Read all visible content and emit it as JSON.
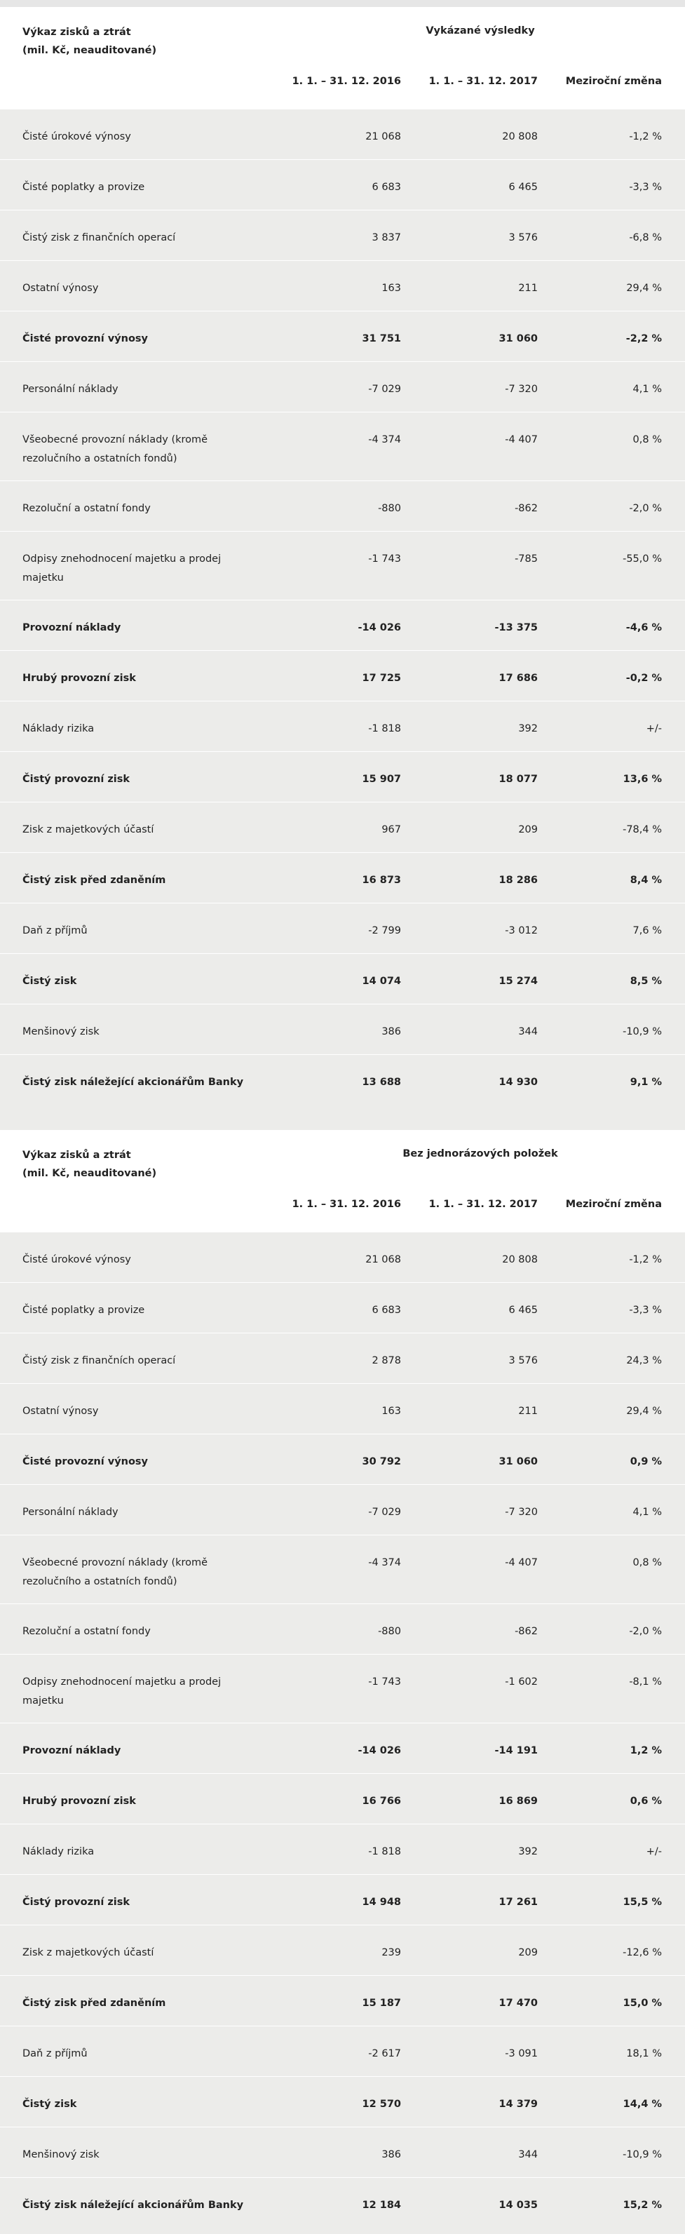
{
  "tables": [
    {
      "title_line1": "Výkaz zisků a ztrát",
      "title_line2": "(mil. Kč, neauditované)",
      "group_header": "Vykázané výsledky",
      "col1": "1. 1. – 31. 12. 2016",
      "col2": "1. 1. – 31. 12. 2017",
      "col3": "Meziroční změna",
      "rows": [
        {
          "label": "Čisté úrokové výnosy",
          "v1": "21 068",
          "v2": "20 808",
          "v3": "-1,2 %",
          "bold": false
        },
        {
          "label": "Čisté poplatky a provize",
          "v1": "6 683",
          "v2": "6 465",
          "v3": "-3,3 %",
          "bold": false
        },
        {
          "label": "Čistý zisk z finančních operací",
          "v1": "3 837",
          "v2": "3 576",
          "v3": "-6,8 %",
          "bold": false
        },
        {
          "label": "Ostatní výnosy",
          "v1": "163",
          "v2": "211",
          "v3": "29,4 %",
          "bold": false
        },
        {
          "label": "Čisté provozní výnosy",
          "v1": "31 751",
          "v2": "31 060",
          "v3": "-2,2 %",
          "bold": true
        },
        {
          "label": "Personální náklady",
          "v1": "-7 029",
          "v2": "-7 320",
          "v3": "4,1 %",
          "bold": false
        },
        {
          "label": "Všeobecné provozní náklady (kromě rezolučního a ostatních fondů)",
          "v1": "-4 374",
          "v2": "-4 407",
          "v3": "0,8 %",
          "bold": false
        },
        {
          "label": "Rezoluční a ostatní fondy",
          "v1": "-880",
          "v2": "-862",
          "v3": "-2,0 %",
          "bold": false
        },
        {
          "label": "Odpisy znehodnocení majetku a prodej majetku",
          "v1": "-1 743",
          "v2": "-785",
          "v3": "-55,0 %",
          "bold": false
        },
        {
          "label": "Provozní náklady",
          "v1": "-14 026",
          "v2": "-13 375",
          "v3": "-4,6 %",
          "bold": true
        },
        {
          "label": "Hrubý provozní zisk",
          "v1": "17 725",
          "v2": "17 686",
          "v3": "-0,2 %",
          "bold": true
        },
        {
          "label": "Náklady rizika",
          "v1": "-1 818",
          "v2": "392",
          "v3": "+/-",
          "bold": false
        },
        {
          "label": "Čistý provozní zisk",
          "v1": "15 907",
          "v2": "18 077",
          "v3": "13,6 %",
          "bold": true
        },
        {
          "label": "Zisk z majetkových účastí",
          "v1": "967",
          "v2": "209",
          "v3": "-78,4 %",
          "bold": false
        },
        {
          "label": "Čistý zisk před zdaněním",
          "v1": "16 873",
          "v2": "18 286",
          "v3": "8,4 %",
          "bold": true
        },
        {
          "label": "Daň z příjmů",
          "v1": "-2 799",
          "v2": "-3 012",
          "v3": "7,6 %",
          "bold": false
        },
        {
          "label": "Čistý zisk",
          "v1": "14 074",
          "v2": "15 274",
          "v3": "8,5 %",
          "bold": true
        },
        {
          "label": "Menšinový zisk",
          "v1": "386",
          "v2": "344",
          "v3": "-10,9 %",
          "bold": false
        },
        {
          "label": "Čistý zisk náležející akcionářům Banky",
          "v1": "13 688",
          "v2": "14 930",
          "v3": "9,1 %",
          "bold": true
        }
      ]
    },
    {
      "title_line1": "Výkaz zisků a ztrát",
      "title_line2": "(mil. Kč, neauditované)",
      "group_header": "Bez jednorázových položek",
      "col1": "1. 1. – 31. 12. 2016",
      "col2": "1. 1. – 31. 12. 2017",
      "col3": "Meziroční změna",
      "rows": [
        {
          "label": "Čisté úrokové výnosy",
          "v1": "21 068",
          "v2": "20 808",
          "v3": "-1,2 %",
          "bold": false
        },
        {
          "label": "Čisté poplatky a provize",
          "v1": "6 683",
          "v2": "6 465",
          "v3": "-3,3 %",
          "bold": false
        },
        {
          "label": "Čistý zisk z finančních operací",
          "v1": "2 878",
          "v2": "3 576",
          "v3": "24,3 %",
          "bold": false
        },
        {
          "label": "Ostatní výnosy",
          "v1": "163",
          "v2": "211",
          "v3": "29,4 %",
          "bold": false
        },
        {
          "label": "Čisté provozní výnosy",
          "v1": "30 792",
          "v2": "31 060",
          "v3": "0,9 %",
          "bold": true
        },
        {
          "label": "Personální náklady",
          "v1": "-7 029",
          "v2": "-7 320",
          "v3": "4,1 %",
          "bold": false
        },
        {
          "label": "Všeobecné provozní náklady (kromě rezolučního a ostatních fondů)",
          "v1": "-4 374",
          "v2": "-4 407",
          "v3": "0,8 %",
          "bold": false
        },
        {
          "label": "Rezoluční a ostatní fondy",
          "v1": "-880",
          "v2": "-862",
          "v3": "-2,0 %",
          "bold": false
        },
        {
          "label": "Odpisy znehodnocení majetku a prodej majetku",
          "v1": "-1 743",
          "v2": "-1 602",
          "v3": "-8,1 %",
          "bold": false
        },
        {
          "label": "Provozní náklady",
          "v1": "-14 026",
          "v2": "-14 191",
          "v3": "1,2 %",
          "bold": true
        },
        {
          "label": "Hrubý provozní zisk",
          "v1": "16 766",
          "v2": "16 869",
          "v3": "0,6 %",
          "bold": true
        },
        {
          "label": "Náklady rizika",
          "v1": "-1 818",
          "v2": "392",
          "v3": "+/-",
          "bold": false
        },
        {
          "label": "Čistý provozní zisk",
          "v1": "14 948",
          "v2": "17 261",
          "v3": "15,5 %",
          "bold": true
        },
        {
          "label": "Zisk z majetkových účastí",
          "v1": "239",
          "v2": "209",
          "v3": "-12,6 %",
          "bold": false
        },
        {
          "label": "Čistý zisk před zdaněním",
          "v1": "15 187",
          "v2": "17 470",
          "v3": "15,0 %",
          "bold": true
        },
        {
          "label": "Daň z příjmů",
          "v1": "-2 617",
          "v2": "-3 091",
          "v3": "18,1 %",
          "bold": false
        },
        {
          "label": "Čistý zisk",
          "v1": "12 570",
          "v2": "14 379",
          "v3": "14,4 %",
          "bold": true
        },
        {
          "label": "Menšinový zisk",
          "v1": "386",
          "v2": "344",
          "v3": "-10,9 %",
          "bold": false
        },
        {
          "label": "Čistý zisk náležející akcionářům Banky",
          "v1": "12 184",
          "v2": "14 035",
          "v3": "15,2 %",
          "bold": true
        }
      ]
    }
  ]
}
